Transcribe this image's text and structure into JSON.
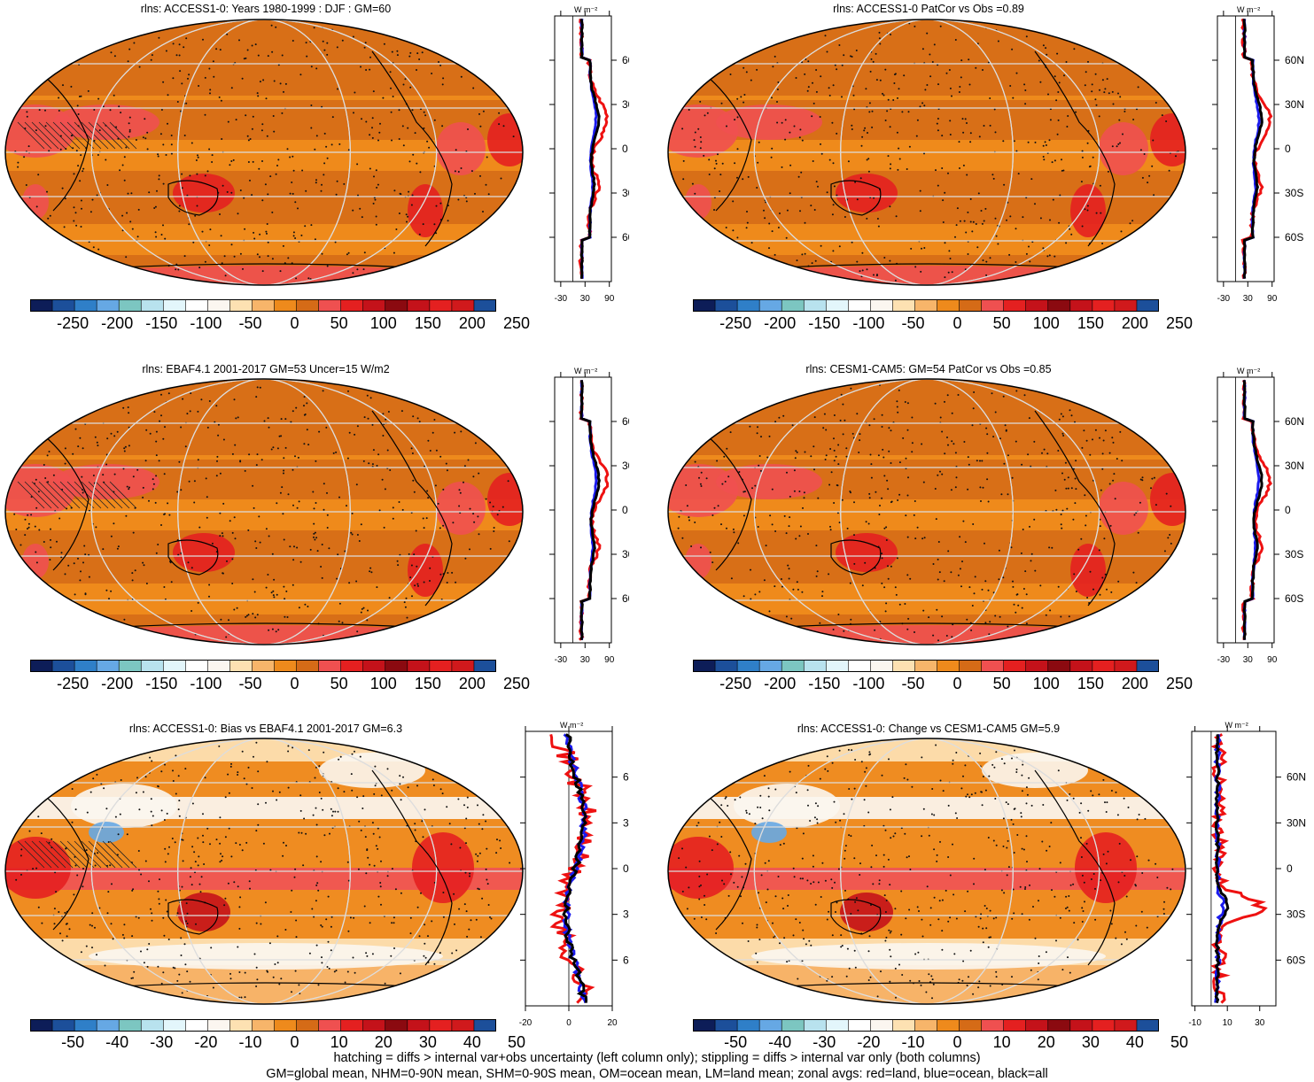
{
  "panels": [
    {
      "title": "rlns: ACCESS1-0: Years 1980-1999 : DJF : GM=60",
      "kind": "mean",
      "hatch": true
    },
    {
      "title": "rlns: ACCESS1-0 PatCor vs Obs =0.89",
      "kind": "mean",
      "hatch": false
    },
    {
      "title": "rlns: EBAF4.1 2001-2017 GM=53 Uncer=15 W/m2",
      "kind": "mean",
      "hatch": true
    },
    {
      "title": "rlns: CESM1-CAM5: GM=54 PatCor vs Obs =0.85",
      "kind": "mean",
      "hatch": false
    },
    {
      "title": "rlns: ACCESS1-0: Bias vs EBAF4.1 2001-2017 GM=6.3",
      "kind": "bias",
      "hatch": true
    },
    {
      "title": "rlns: ACCESS1-0: Change vs CESM1-CAM5 GM=5.9",
      "kind": "change",
      "hatch": false
    }
  ],
  "colorbars": {
    "mean_labels": [
      "-250",
      "-200",
      "-150",
      "-100",
      "-50",
      "0",
      "50",
      "100",
      "150",
      "200",
      "250"
    ],
    "diff_labels": [
      "-50",
      "-40",
      "-30",
      "-20",
      "-10",
      "0",
      "10",
      "20",
      "30",
      "40",
      "50"
    ],
    "colors": [
      "#0d1d58",
      "#1c4f9a",
      "#2f7fc8",
      "#66a8e4",
      "#7cc6c1",
      "#b8e2ee",
      "#e3f6fb",
      "#ffffff",
      "#fbf6f0",
      "#fde1b2",
      "#f7b56a",
      "#ee8a1c",
      "#d56b17",
      "#ef5050",
      "#e42020",
      "#c4121a",
      "#8b0a10",
      "#c4121a",
      "#e42020",
      "#d0191c",
      "#1c4f9a"
    ]
  },
  "zonal": {
    "units": "W m⁻²",
    "lat_labels": [
      "60N",
      "30N",
      "0",
      "30S",
      "60S"
    ],
    "lat_values": [
      60,
      30,
      0,
      -30,
      -60
    ],
    "xlabels_mean": [
      "-30",
      "30",
      "90"
    ],
    "xvalues_mean": [
      -30,
      30,
      90
    ],
    "xlabels_bias": [
      "-20",
      "0",
      "20"
    ],
    "xvalues_bias": [
      -20,
      0,
      20
    ],
    "xlabels_change": [
      "-10",
      "10",
      "30"
    ],
    "xvalues_change": [
      -10,
      10,
      30
    ],
    "legend_colors": {
      "land": "#ee1111",
      "ocean": "#1a1aee",
      "all": "#000000"
    }
  },
  "footer": {
    "line1": "hatching = diffs > internal var+obs uncertainty (left column only); stippling = diffs > internal var only (both columns)",
    "line2": "GM=global mean, NHM=0-90N mean, SHM=0-90S mean, OM=ocean mean, LM=land mean; zonal avgs: red=land, blue=ocean, black=all"
  }
}
